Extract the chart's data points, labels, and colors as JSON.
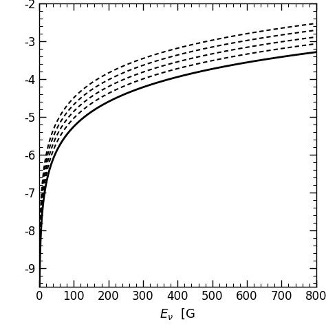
{
  "xlim": [
    0,
    800
  ],
  "ylim": [
    -9.5,
    -2.0
  ],
  "xticks": [
    0,
    100,
    200,
    300,
    400,
    500,
    600,
    700,
    800
  ],
  "yticks": [
    -9,
    -8,
    -7,
    -6,
    -5,
    -4,
    -3,
    -2
  ],
  "solid_a": 2.18,
  "solid_b": -9.62,
  "dashed_offsets": [
    0.22,
    0.4,
    0.58,
    0.76
  ],
  "dash_pattern_1": [
    3,
    2
  ],
  "dash_pattern_2": [
    3,
    2
  ],
  "dash_pattern_3": [
    3,
    2
  ],
  "dash_pattern_4": [
    3,
    2
  ],
  "solid_lw": 2.0,
  "dashed_lw": 1.5,
  "figsize": [
    4.74,
    4.74
  ],
  "dpi": 100
}
